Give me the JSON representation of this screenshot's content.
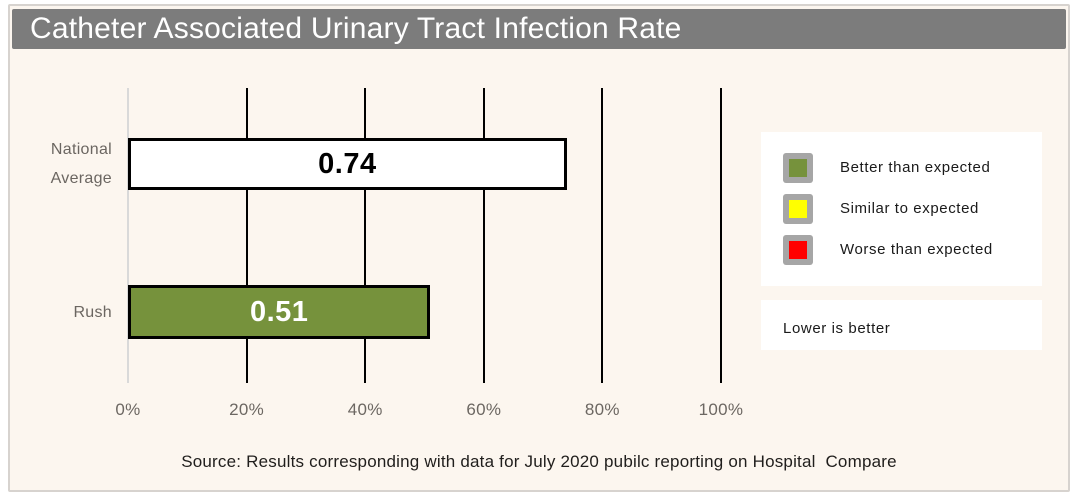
{
  "title": "Catheter Associated Urinary Tract Infection Rate",
  "chart_data": {
    "type": "bar",
    "orientation": "horizontal",
    "title": "Catheter Associated Urinary Tract Infection Rate",
    "categories": [
      "National Average",
      "Rush"
    ],
    "values": [
      0.74,
      0.51
    ],
    "value_labels": [
      "0.74",
      "0.51"
    ],
    "bar_colors": [
      "#FFFFFF",
      "#76923C"
    ],
    "bar_label_colors": [
      "#000000",
      "#FFFFFF"
    ],
    "bar_border_color": "#000000",
    "xlim": [
      0,
      1
    ],
    "x_tick_labels": [
      "0%",
      "20%",
      "40%",
      "60%",
      "80%",
      "100%"
    ],
    "grid": "vertical-only",
    "legend_position": "right",
    "note": "Lower is better"
  },
  "legend": {
    "items": [
      {
        "name": "better-than-expected",
        "label": "Better than expected",
        "color": "#76923C"
      },
      {
        "name": "similar-to-expected",
        "label": "Similar to expected",
        "color": "#FFFF00"
      },
      {
        "name": "worse-than-expected",
        "label": "Worse than expected",
        "color": "#FF0000"
      }
    ],
    "swatch_border_color": "#A6A6A6"
  },
  "note": {
    "text": "Lower is better"
  },
  "source": "Source: Results corresponding with data for July 2020 pubilc reporting on Hospital  Compare",
  "colors": {
    "title_bar": "#7C7C7C",
    "card_background": "#FCF6EF",
    "gridline": "#000000",
    "zero_line": "#D9D9D9",
    "category_label_text": "#6B6661"
  }
}
